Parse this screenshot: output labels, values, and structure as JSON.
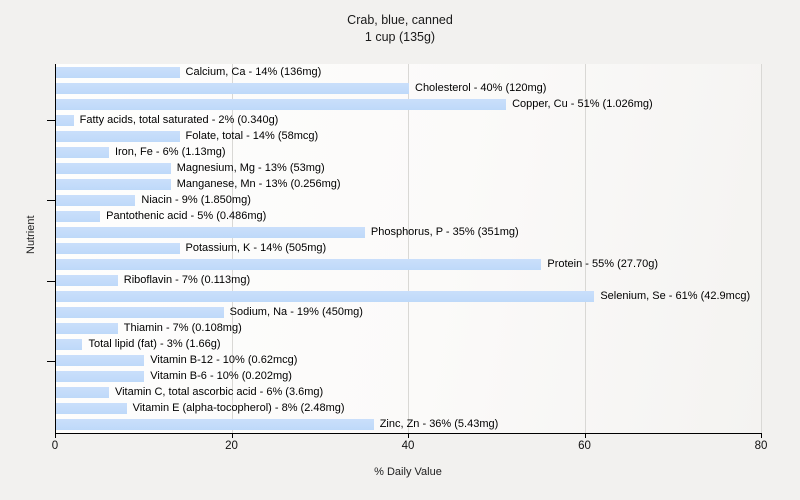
{
  "title": {
    "line1": "Crab, blue, canned",
    "line2": "1 cup (135g)"
  },
  "axes": {
    "xlabel": "% Daily Value",
    "ylabel": "Nutrient"
  },
  "colors": {
    "page_background": "#f2f1ef",
    "plot_background": "#fbfaf9",
    "bar_fill": "#bed9f9",
    "gridline": "#d9d8d5",
    "axis_line": "#000000",
    "text": "#1a1a1a"
  },
  "chart_data": {
    "type": "bar",
    "orientation": "horizontal",
    "title": "Crab, blue, canned",
    "subtitle": "1 cup (135g)",
    "xlabel": "% Daily Value",
    "ylabel": "Nutrient",
    "xlim": [
      0,
      80
    ],
    "xticks": [
      0,
      20,
      40,
      60,
      80
    ],
    "grid": "vertical gridlines at major x ticks",
    "legend": "none",
    "bar_label_format": "{nutrient} - {percent}% ({amount})",
    "y_axis_tick_rows": [
      4,
      9,
      14,
      19
    ],
    "bars": [
      {
        "nutrient": "Calcium, Ca",
        "percent": 14,
        "amount": "136mg",
        "label": "Calcium, Ca - 14% (136mg)"
      },
      {
        "nutrient": "Cholesterol",
        "percent": 40,
        "amount": "120mg",
        "label": "Cholesterol - 40% (120mg)"
      },
      {
        "nutrient": "Copper, Cu",
        "percent": 51,
        "amount": "1.026mg",
        "label": "Copper, Cu - 51% (1.026mg)"
      },
      {
        "nutrient": "Fatty acids, total saturated",
        "percent": 2,
        "amount": "0.340g",
        "label": "Fatty acids, total saturated - 2% (0.340g)"
      },
      {
        "nutrient": "Folate, total",
        "percent": 14,
        "amount": "58mcg",
        "label": "Folate, total - 14% (58mcg)"
      },
      {
        "nutrient": "Iron, Fe",
        "percent": 6,
        "amount": "1.13mg",
        "label": "Iron, Fe - 6% (1.13mg)"
      },
      {
        "nutrient": "Magnesium, Mg",
        "percent": 13,
        "amount": "53mg",
        "label": "Magnesium, Mg - 13% (53mg)"
      },
      {
        "nutrient": "Manganese, Mn",
        "percent": 13,
        "amount": "0.256mg",
        "label": "Manganese, Mn - 13% (0.256mg)"
      },
      {
        "nutrient": "Niacin",
        "percent": 9,
        "amount": "1.850mg",
        "label": "Niacin - 9% (1.850mg)"
      },
      {
        "nutrient": "Pantothenic acid",
        "percent": 5,
        "amount": "0.486mg",
        "label": "Pantothenic acid - 5% (0.486mg)"
      },
      {
        "nutrient": "Phosphorus, P",
        "percent": 35,
        "amount": "351mg",
        "label": "Phosphorus, P - 35% (351mg)"
      },
      {
        "nutrient": "Potassium, K",
        "percent": 14,
        "amount": "505mg",
        "label": "Potassium, K - 14% (505mg)"
      },
      {
        "nutrient": "Protein",
        "percent": 55,
        "amount": "27.70g",
        "label": "Protein - 55% (27.70g)"
      },
      {
        "nutrient": "Riboflavin",
        "percent": 7,
        "amount": "0.113mg",
        "label": "Riboflavin - 7% (0.113mg)"
      },
      {
        "nutrient": "Selenium, Se",
        "percent": 61,
        "amount": "42.9mcg",
        "label": "Selenium, Se - 61% (42.9mcg)"
      },
      {
        "nutrient": "Sodium, Na",
        "percent": 19,
        "amount": "450mg",
        "label": "Sodium, Na - 19% (450mg)"
      },
      {
        "nutrient": "Thiamin",
        "percent": 7,
        "amount": "0.108mg",
        "label": "Thiamin - 7% (0.108mg)"
      },
      {
        "nutrient": "Total lipid (fat)",
        "percent": 3,
        "amount": "1.66g",
        "label": "Total lipid (fat) - 3% (1.66g)"
      },
      {
        "nutrient": "Vitamin B-12",
        "percent": 10,
        "amount": "0.62mcg",
        "label": "Vitamin B-12 - 10% (0.62mcg)"
      },
      {
        "nutrient": "Vitamin B-6",
        "percent": 10,
        "amount": "0.202mg",
        "label": "Vitamin B-6 - 10% (0.202mg)"
      },
      {
        "nutrient": "Vitamin C, total ascorbic acid",
        "percent": 6,
        "amount": "3.6mg",
        "label": "Vitamin C, total ascorbic acid - 6% (3.6mg)"
      },
      {
        "nutrient": "Vitamin E (alpha-tocopherol)",
        "percent": 8,
        "amount": "2.48mg",
        "label": "Vitamin E (alpha-tocopherol) - 8% (2.48mg)"
      },
      {
        "nutrient": "Zinc, Zn",
        "percent": 36,
        "amount": "5.43mg",
        "label": "Zinc, Zn - 36% (5.43mg)"
      }
    ]
  }
}
